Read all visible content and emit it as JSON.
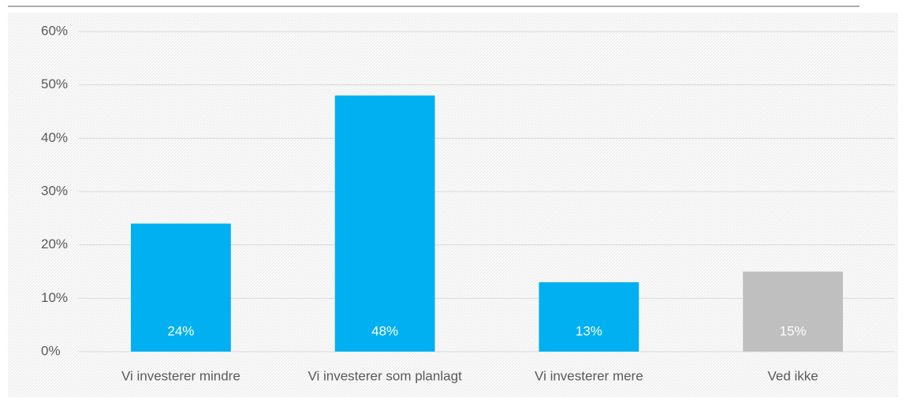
{
  "chart_data": {
    "type": "bar",
    "categories": [
      "Vi investerer mindre",
      "Vi investerer som planlagt",
      "Vi investerer mere",
      "Ved ikke"
    ],
    "values": [
      24,
      48,
      13,
      15
    ],
    "value_labels": [
      "24%",
      "48%",
      "13%",
      "15%"
    ],
    "colors": [
      "#00b0f0",
      "#00b0f0",
      "#00b0f0",
      "#bfbfbf"
    ],
    "ylim": [
      0,
      60
    ],
    "yticks": [
      {
        "value": 0,
        "label": "0%"
      },
      {
        "value": 10,
        "label": "10%"
      },
      {
        "value": 20,
        "label": "20%"
      },
      {
        "value": 30,
        "label": "30%"
      },
      {
        "value": 40,
        "label": "40%"
      },
      {
        "value": 50,
        "label": "50%"
      },
      {
        "value": 60,
        "label": "60%"
      }
    ],
    "grid": true
  }
}
